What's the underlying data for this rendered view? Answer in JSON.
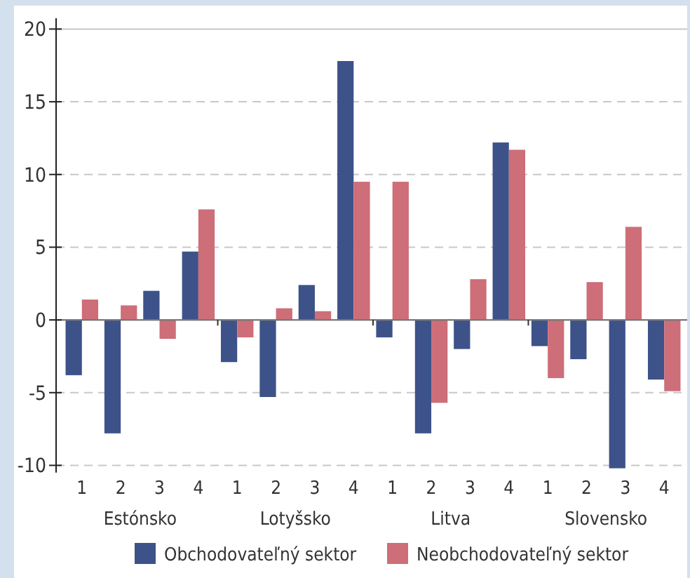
{
  "chart_data": {
    "type": "bar",
    "categories": [
      "1",
      "2",
      "3",
      "4",
      "1",
      "2",
      "3",
      "4",
      "1",
      "2",
      "3",
      "4",
      "1",
      "2",
      "3",
      "4"
    ],
    "series": [
      {
        "name": "Obchodovateľný sektor",
        "color": "#3d5289",
        "values": [
          -3.8,
          -7.8,
          2.0,
          4.7,
          -2.9,
          -5.3,
          2.4,
          17.8,
          -1.2,
          -7.8,
          -2.0,
          12.2,
          -1.8,
          -2.7,
          -10.2,
          -4.1
        ]
      },
      {
        "name": "Neobchodovateľný sektor",
        "color": "#cd6e78",
        "values": [
          1.4,
          1.0,
          -1.3,
          7.6,
          -1.2,
          0.8,
          0.6,
          9.5,
          9.5,
          -5.7,
          2.8,
          11.7,
          -4.0,
          2.6,
          6.4,
          -4.9
        ]
      }
    ],
    "annotations": [
      "Estónsko",
      "Lotyšsko",
      "Litva",
      "Slovensko"
    ],
    "ylim": [
      -10.5,
      20
    ],
    "yticks": [
      -10,
      -5,
      0,
      5,
      10,
      15,
      20
    ],
    "grid": "y",
    "legend": "bottom"
  }
}
